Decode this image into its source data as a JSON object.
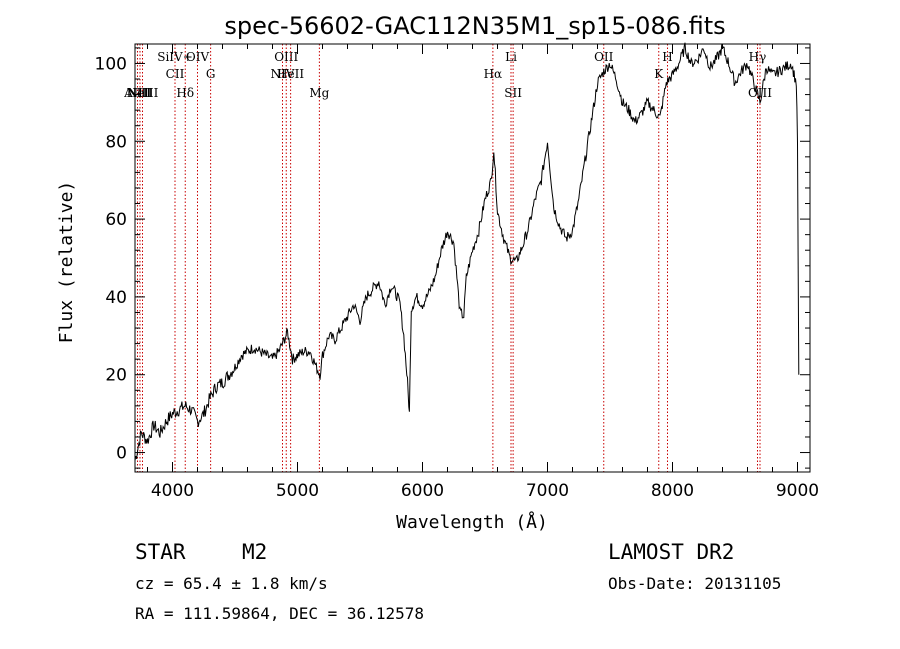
{
  "title": "spec-56602-GAC112N35M1_sp15-086.fits",
  "info": {
    "object_class": "STAR",
    "subclass": "M2",
    "cz": "cz = 65.4 ± 1.8 km/s",
    "coords": "RA = 111.59864, DEC =  36.12578",
    "survey": "LAMOST DR2",
    "obs_date": "Obs-Date: 20131105"
  },
  "chart_data": {
    "type": "line",
    "title": "spec-56602-GAC112N35M1_sp15-086.fits",
    "xlabel": "Wavelength (Å)",
    "ylabel": "Flux (relative)",
    "xlim": [
      3700,
      9100
    ],
    "ylim": [
      -5,
      105
    ],
    "xticks": [
      4000,
      5000,
      6000,
      7000,
      8000,
      9000
    ],
    "yticks": [
      0,
      20,
      40,
      60,
      80,
      100
    ],
    "grid": false,
    "series": [
      {
        "color": "#000000",
        "x": [
          3700,
          3750,
          3800,
          3850,
          3900,
          3950,
          4000,
          4050,
          4100,
          4150,
          4200,
          4250,
          4300,
          4350,
          4400,
          4450,
          4500,
          4550,
          4600,
          4650,
          4700,
          4750,
          4800,
          4850,
          4880,
          4920,
          4960,
          5000,
          5050,
          5100,
          5150,
          5180,
          5200,
          5250,
          5300,
          5350,
          5400,
          5450,
          5500,
          5550,
          5600,
          5650,
          5700,
          5750,
          5800,
          5820,
          5850,
          5880,
          5895,
          5910,
          5950,
          6000,
          6050,
          6100,
          6150,
          6200,
          6250,
          6300,
          6330,
          6350,
          6400,
          6450,
          6500,
          6550,
          6570,
          6600,
          6650,
          6700,
          6750,
          6800,
          6850,
          6900,
          6950,
          7000,
          7050,
          7100,
          7150,
          7200,
          7250,
          7300,
          7350,
          7400,
          7450,
          7500,
          7550,
          7600,
          7650,
          7700,
          7750,
          7800,
          7850,
          7900,
          7950,
          8000,
          8050,
          8100,
          8150,
          8200,
          8250,
          8300,
          8350,
          8400,
          8450,
          8500,
          8550,
          8600,
          8650,
          8700,
          8750,
          8800,
          8850,
          8900,
          8950,
          8990,
          9000,
          9010
        ],
        "y": [
          -2,
          5,
          3,
          7,
          5,
          8,
          10,
          11,
          12,
          11,
          8,
          10,
          14,
          17,
          18,
          20,
          22,
          25,
          26,
          27,
          26,
          25,
          24,
          26,
          28,
          31,
          24,
          25,
          26,
          26,
          22,
          20,
          25,
          30,
          29,
          32,
          35,
          38,
          34,
          40,
          42,
          44,
          38,
          43,
          40,
          38,
          30,
          18,
          10,
          37,
          40,
          38,
          41,
          45,
          52,
          57,
          54,
          36,
          35,
          45,
          52,
          57,
          65,
          70,
          78,
          62,
          55,
          50,
          49,
          53,
          58,
          65,
          70,
          80,
          63,
          58,
          55,
          57,
          65,
          75,
          85,
          95,
          98,
          100,
          96,
          90,
          88,
          85,
          87,
          90,
          88,
          86,
          95,
          97,
          100,
          104,
          100,
          101,
          104,
          99,
          101,
          104,
          100,
          95,
          98,
          100,
          95,
          90,
          99,
          97,
          98,
          99,
          100,
          95,
          80,
          20
        ]
      }
    ],
    "lines": [
      {
        "label": "AlIII",
        "wavelength": 3720,
        "row": 3
      },
      {
        "label": "NIII",
        "wavelength": 3740,
        "row": 3
      },
      {
        "label": "NeIII",
        "wavelength": 3760,
        "row": 3
      },
      {
        "label": "SiIV+",
        "wavelength": 4020,
        "row": 1
      },
      {
        "label": "CII",
        "wavelength": 4020,
        "row": 2
      },
      {
        "label": "Hδ",
        "wavelength": 4102,
        "row": 3
      },
      {
        "label": "OIV",
        "wavelength": 4200,
        "row": 1
      },
      {
        "label": "G",
        "wavelength": 4305,
        "row": 2
      },
      {
        "label": "NIV",
        "wavelength": 4880,
        "row": 2
      },
      {
        "label": "OIII",
        "wavelength": 4910,
        "row": 1
      },
      {
        "label": "HeII",
        "wavelength": 4945,
        "row": 2
      },
      {
        "label": "Mg",
        "wavelength": 5175,
        "row": 3
      },
      {
        "label": "Hα",
        "wavelength": 6563,
        "row": 2
      },
      {
        "label": "Li",
        "wavelength": 6708,
        "row": 1
      },
      {
        "label": "SII",
        "wavelength": 6725,
        "row": 3
      },
      {
        "label": "OII",
        "wavelength": 7450,
        "row": 1
      },
      {
        "label": "K",
        "wavelength": 7890,
        "row": 2
      },
      {
        "label": "H",
        "wavelength": 7960,
        "row": 1
      },
      {
        "label": "Hγ",
        "wavelength": 8680,
        "row": 1
      },
      {
        "label": "OIII",
        "wavelength": 8700,
        "row": 3
      }
    ]
  }
}
